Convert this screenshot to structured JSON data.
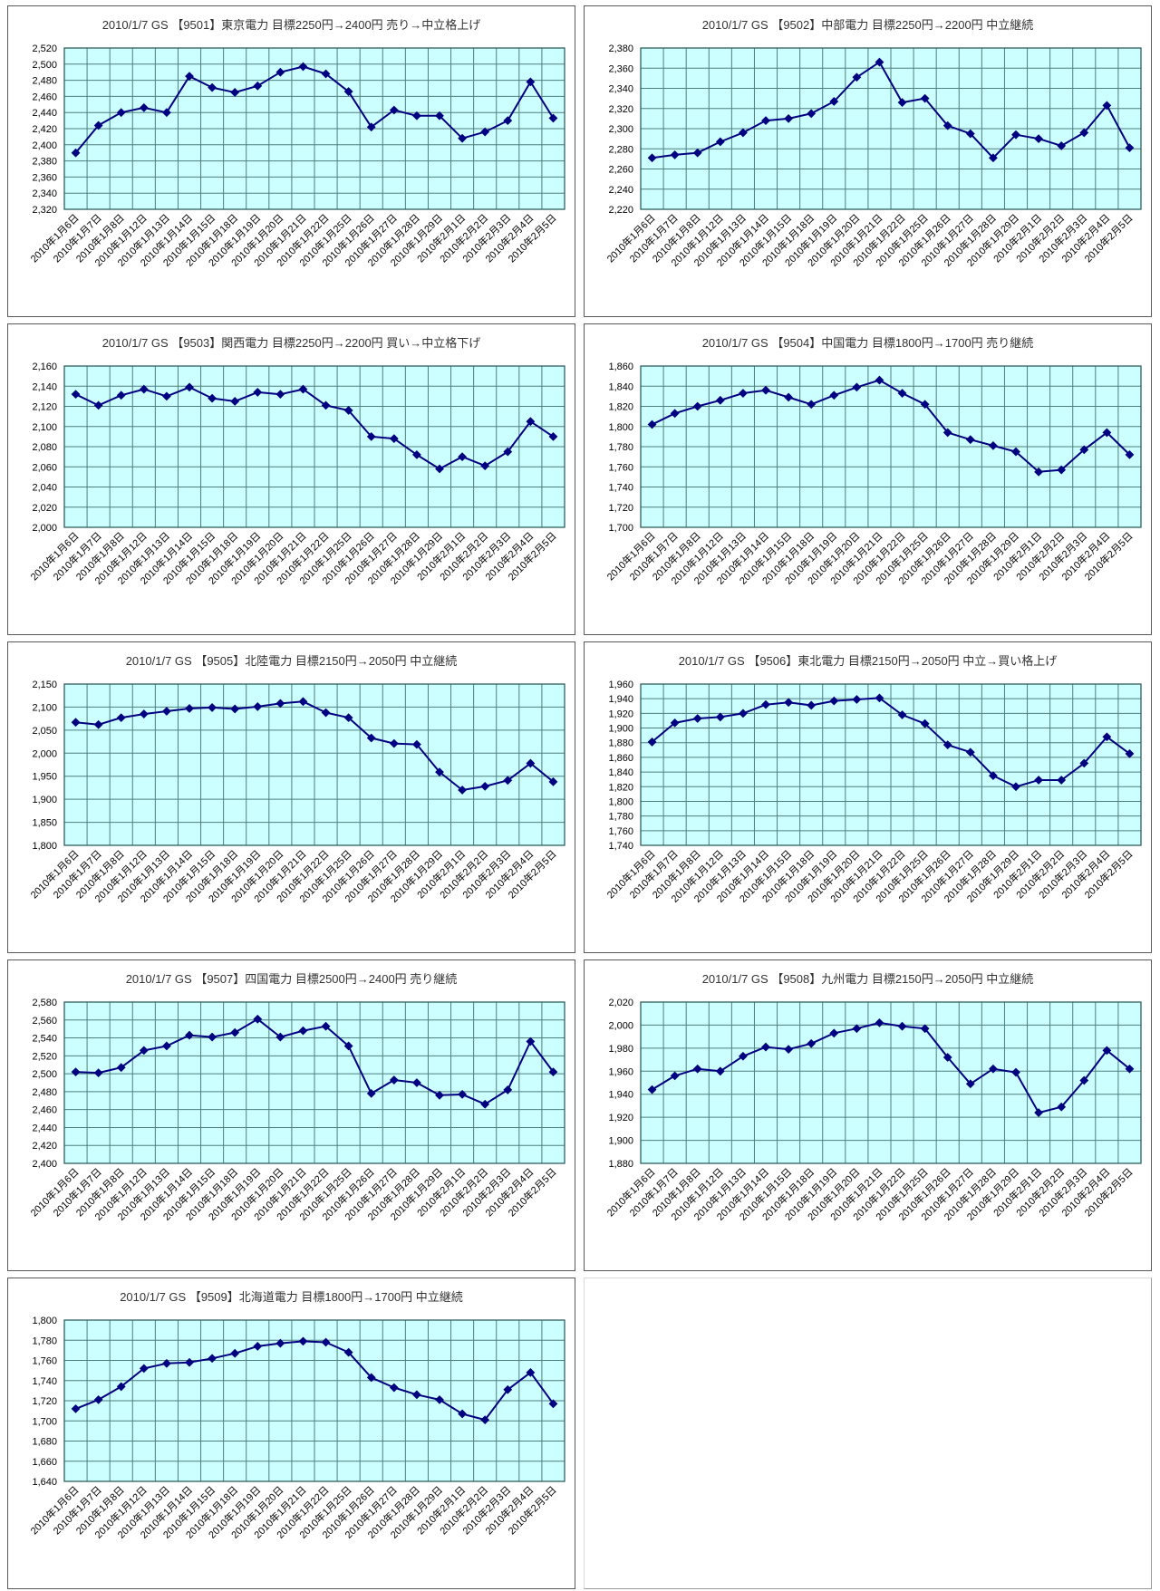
{
  "page": {
    "description": "grid of 9 daily stock price line charts for Japanese electric power companies with Goldman Sachs target price revisions"
  },
  "colors": {
    "plot_bg": "#ccffff",
    "grid_line": "#4e7f7f",
    "plot_border": "#2f5f5f",
    "series_line": "#000080",
    "marker_fill": "#000080",
    "panel_border": "#595959",
    "title_text": "#333333",
    "axis_text": "#000000"
  },
  "chart_data": {
    "type": "line",
    "legend": "none",
    "grid": "on",
    "x_categories": [
      "2010年1月6日",
      "2010年1月7日",
      "2010年1月8日",
      "2010年1月12日",
      "2010年1月13日",
      "2010年1月14日",
      "2010年1月15日",
      "2010年1月18日",
      "2010年1月19日",
      "2010年1月20日",
      "2010年1月21日",
      "2010年1月22日",
      "2010年1月25日",
      "2010年1月26日",
      "2010年1月27日",
      "2010年1月28日",
      "2010年1月29日",
      "2010年2月1日",
      "2010年2月2日",
      "2010年2月3日",
      "2010年2月4日",
      "2010年2月5日"
    ],
    "charts": [
      {
        "title": "2010/1/7 GS 【9501】東京電力 目標2250円→2400円 売り→中立格上げ",
        "y_min": 2320,
        "y_max": 2520,
        "y_step": 20,
        "values": [
          2390,
          2424,
          2440,
          2446,
          2440,
          2485,
          2471,
          2465,
          2473,
          2490,
          2497,
          2488,
          2466,
          2422,
          2443,
          2436,
          2436,
          2408,
          2416,
          2430,
          2478,
          2433
        ]
      },
      {
        "title": "2010/1/7 GS 【9502】中部電力 目標2250円→2200円 中立継続",
        "y_min": 2220,
        "y_max": 2380,
        "y_step": 20,
        "values": [
          2271,
          2274,
          2276,
          2287,
          2296,
          2308,
          2310,
          2315,
          2327,
          2351,
          2366,
          2326,
          2330,
          2303,
          2295,
          2271,
          2294,
          2290,
          2283,
          2296,
          2323,
          2281
        ]
      },
      {
        "title": "2010/1/7 GS 【9503】関西電力 目標2250円→2200円 買い→中立格下げ",
        "y_min": 2000,
        "y_max": 2160,
        "y_step": 20,
        "values": [
          2132,
          2121,
          2131,
          2137,
          2130,
          2139,
          2128,
          2125,
          2134,
          2132,
          2137,
          2121,
          2116,
          2090,
          2088,
          2072,
          2058,
          2070,
          2061,
          2075,
          2105,
          2090
        ]
      },
      {
        "title": "2010/1/7 GS 【9504】中国電力 目標1800円→1700円 売り継続",
        "y_min": 1700,
        "y_max": 1860,
        "y_step": 20,
        "values": [
          1802,
          1813,
          1820,
          1826,
          1833,
          1836,
          1829,
          1822,
          1831,
          1839,
          1846,
          1833,
          1822,
          1794,
          1787,
          1781,
          1775,
          1755,
          1757,
          1777,
          1794,
          1772
        ]
      },
      {
        "title": "2010/1/7 GS 【9505】北陸電力 目標2150円→2050円 中立継続",
        "y_min": 1800,
        "y_max": 2150,
        "y_step": 50,
        "values": [
          2067,
          2062,
          2077,
          2085,
          2091,
          2097,
          2099,
          2096,
          2101,
          2108,
          2112,
          2088,
          2077,
          2033,
          2021,
          2019,
          1959,
          1920,
          1928,
          1941,
          1978,
          1938
        ]
      },
      {
        "title": "2010/1/7 GS 【9506】東北電力 目標2150円→2050円 中立→買い格上げ",
        "y_min": 1740,
        "y_max": 1960,
        "y_step": 20,
        "values": [
          1881,
          1907,
          1913,
          1915,
          1920,
          1932,
          1935,
          1931,
          1937,
          1939,
          1941,
          1918,
          1906,
          1877,
          1867,
          1835,
          1820,
          1829,
          1829,
          1852,
          1888,
          1865
        ]
      },
      {
        "title": "2010/1/7 GS 【9507】四国電力 目標2500円→2400円 売り継続",
        "y_min": 2400,
        "y_max": 2580,
        "y_step": 20,
        "values": [
          2502,
          2501,
          2507,
          2526,
          2531,
          2543,
          2541,
          2546,
          2561,
          2541,
          2548,
          2553,
          2531,
          2478,
          2493,
          2490,
          2476,
          2477,
          2466,
          2482,
          2536,
          2502
        ]
      },
      {
        "title": "2010/1/7 GS 【9508】九州電力 目標2150円→2050円 中立継続",
        "y_min": 1880,
        "y_max": 2020,
        "y_step": 20,
        "values": [
          1944,
          1956,
          1962,
          1960,
          1973,
          1981,
          1979,
          1984,
          1993,
          1997,
          2002,
          1999,
          1997,
          1972,
          1949,
          1962,
          1959,
          1924,
          1929,
          1952,
          1978,
          1962
        ]
      },
      {
        "title": "2010/1/7 GS 【9509】北海道電力 目標1800円→1700円 中立継続",
        "y_min": 1640,
        "y_max": 1800,
        "y_step": 20,
        "values": [
          1712,
          1721,
          1734,
          1752,
          1757,
          1758,
          1762,
          1767,
          1774,
          1777,
          1779,
          1778,
          1768,
          1743,
          1733,
          1726,
          1721,
          1707,
          1701,
          1731,
          1748,
          1717
        ]
      }
    ]
  }
}
